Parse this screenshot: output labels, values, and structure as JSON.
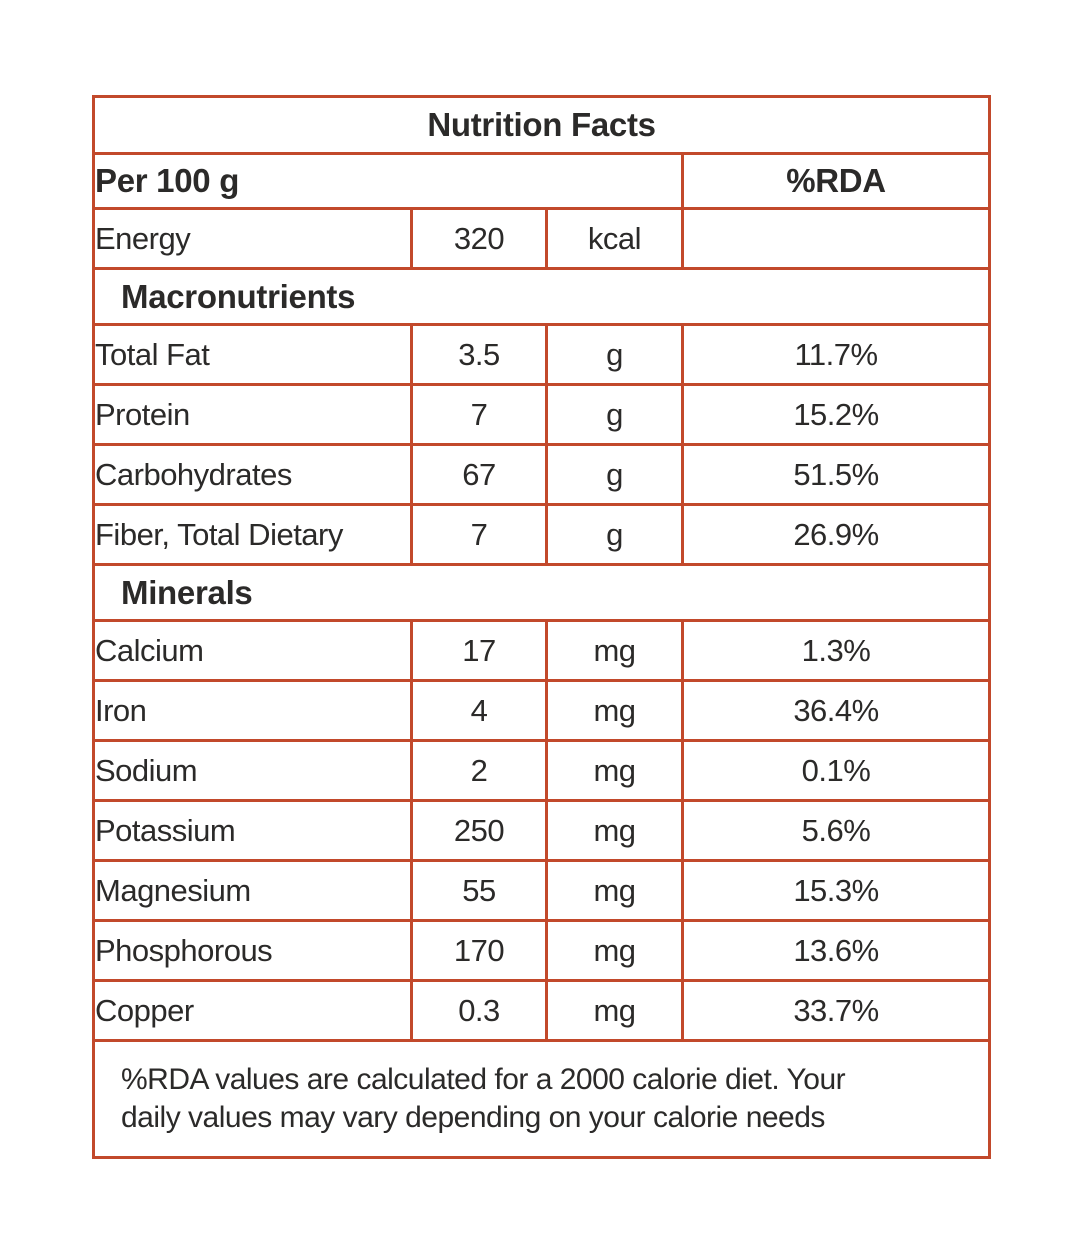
{
  "colors": {
    "border": "#c2492b",
    "text": "#2b2a29",
    "background": "#ffffff"
  },
  "table": {
    "title": "Nutrition Facts",
    "column_headers": {
      "serving": "Per 100 g",
      "rda": "%RDA"
    },
    "energy": {
      "name": "Energy",
      "value": "320",
      "unit": "kcal",
      "rda": ""
    },
    "sections": [
      {
        "label": "Macronutrients",
        "rows": [
          {
            "name": "Total Fat",
            "value": "3.5",
            "unit": "g",
            "rda": "11.7%"
          },
          {
            "name": "Protein",
            "value": "7",
            "unit": "g",
            "rda": "15.2%"
          },
          {
            "name": "Carbohydrates",
            "value": "67",
            "unit": "g",
            "rda": "51.5%"
          },
          {
            "name": "Fiber, Total Dietary",
            "value": "7",
            "unit": "g",
            "rda": "26.9%"
          }
        ]
      },
      {
        "label": "Minerals",
        "rows": [
          {
            "name": "Calcium",
            "value": "17",
            "unit": "mg",
            "rda": "1.3%"
          },
          {
            "name": "Iron",
            "value": "4",
            "unit": "mg",
            "rda": "36.4%"
          },
          {
            "name": "Sodium",
            "value": "2",
            "unit": "mg",
            "rda": "0.1%"
          },
          {
            "name": "Potassium",
            "value": "250",
            "unit": "mg",
            "rda": "5.6%"
          },
          {
            "name": "Magnesium",
            "value": "55",
            "unit": "mg",
            "rda": "15.3%"
          },
          {
            "name": "Phosphorous",
            "value": "170",
            "unit": "mg",
            "rda": "13.6%"
          },
          {
            "name": "Copper",
            "value": "0.3",
            "unit": "mg",
            "rda": "33.7%"
          }
        ]
      }
    ],
    "footnote_lines": [
      "%RDA values are calculated for a 2000 calorie diet. Your",
      "daily values may vary depending on your calorie needs"
    ]
  }
}
